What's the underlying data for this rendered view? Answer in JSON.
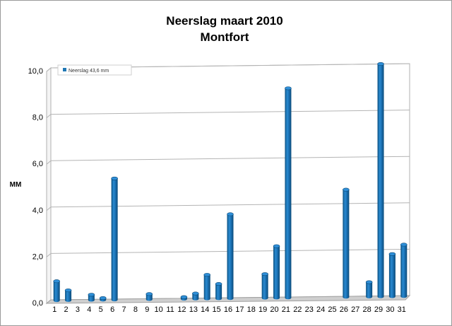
{
  "chart_data": {
    "type": "bar",
    "title": "Neerslag maart 2010",
    "subtitle": "Montfort",
    "ylabel": "MM",
    "xlabel": "",
    "ylim": [
      0,
      10
    ],
    "yticks": [
      "0,0",
      "2,0",
      "4,0",
      "6,0",
      "8,0",
      "10,0"
    ],
    "grid": true,
    "legend_position": "top-left",
    "categories": [
      "1",
      "2",
      "3",
      "4",
      "5",
      "6",
      "7",
      "8",
      "9",
      "10",
      "11",
      "12",
      "13",
      "14",
      "15",
      "16",
      "17",
      "18",
      "19",
      "20",
      "21",
      "22",
      "23",
      "24",
      "25",
      "26",
      "27",
      "28",
      "29",
      "30",
      "31"
    ],
    "series": [
      {
        "name": "Neerslag 43,6 mm",
        "color": "#1f77b4",
        "values": [
          0.8,
          0.4,
          0,
          0.2,
          0.05,
          5.2,
          0,
          0,
          0.2,
          0,
          0,
          0.05,
          0.2,
          1.0,
          0.6,
          3.6,
          0,
          0,
          1.0,
          2.2,
          9.0,
          0,
          0,
          0,
          0,
          4.6,
          0,
          0.6,
          10.0,
          1.8,
          2.2
        ]
      }
    ]
  }
}
